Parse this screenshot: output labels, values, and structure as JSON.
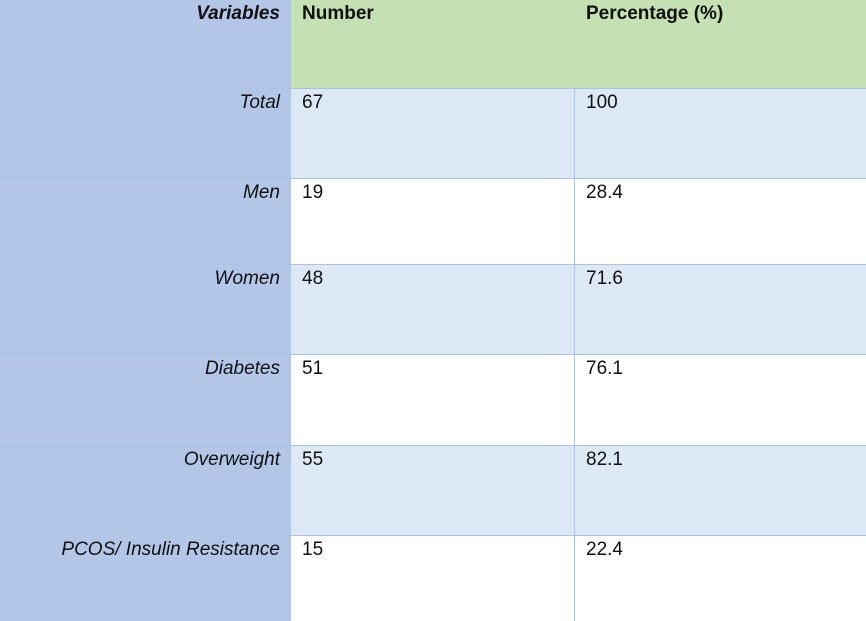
{
  "header": {
    "variables": "Variables",
    "number": "Number",
    "percentage": "Percentage (%)"
  },
  "rows": [
    {
      "label": "Total",
      "number": "67",
      "percentage": "100"
    },
    {
      "label": "Men",
      "number": "19",
      "percentage": "28.4"
    },
    {
      "label": "Women",
      "number": "48",
      "percentage": "71.6"
    },
    {
      "label": "Diabetes",
      "number": "51",
      "percentage": "76.1"
    },
    {
      "label": "Overweight",
      "number": "55",
      "percentage": "82.1"
    },
    {
      "label": "PCOS/ Insulin Resistance",
      "number": "15",
      "percentage": "22.4"
    }
  ],
  "colors": {
    "label_column": "#b4c6e7",
    "header_fill": "#c5e0b3",
    "band_fill": "#dde8f5",
    "border": "#a9c3e3"
  }
}
